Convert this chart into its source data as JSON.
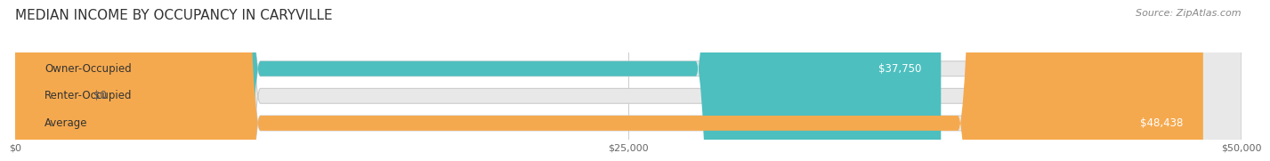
{
  "title": "MEDIAN INCOME BY OCCUPANCY IN CARYVILLE",
  "source": "Source: ZipAtlas.com",
  "categories": [
    "Owner-Occupied",
    "Renter-Occupied",
    "Average"
  ],
  "values": [
    37750,
    0,
    48438
  ],
  "bar_colors": [
    "#4DBFBF",
    "#C9B8D8",
    "#F5A94E"
  ],
  "bar_labels": [
    "$37,750",
    "$0",
    "$48,438"
  ],
  "xlim": [
    0,
    50000
  ],
  "xticks": [
    0,
    25000,
    50000
  ],
  "xtick_labels": [
    "$0",
    "$25,000",
    "$50,000"
  ],
  "bar_bg_color": "#e8e8e8",
  "title_fontsize": 11,
  "label_fontsize": 8.5,
  "value_fontsize": 8.5,
  "source_fontsize": 8
}
